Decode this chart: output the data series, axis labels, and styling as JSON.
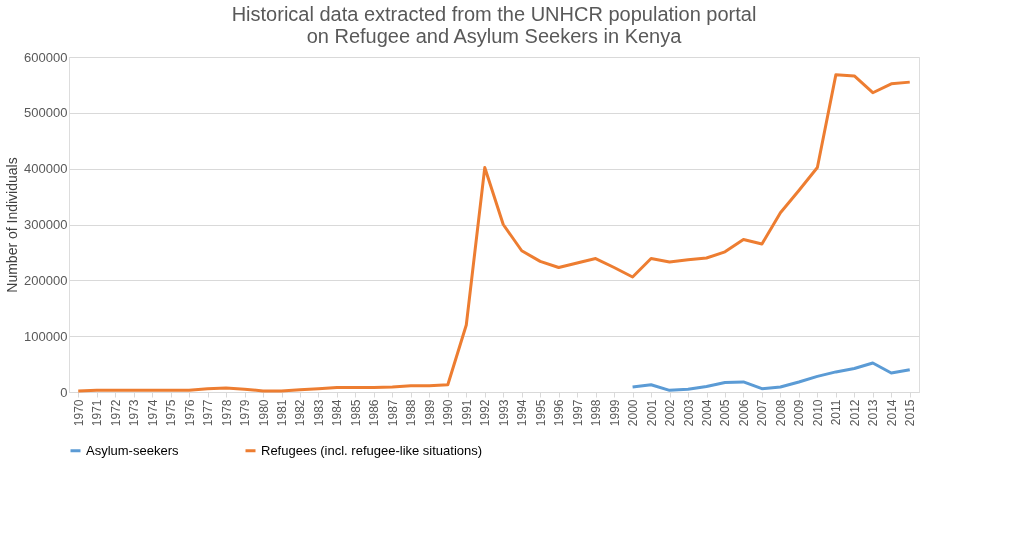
{
  "chart_data": {
    "type": "line",
    "title": "Historical data extracted from the UNHCR population portal\non Refugee and Asylum Seekers in Kenya",
    "ylabel": "Number of Individuals",
    "categories": [
      "1970",
      "1971",
      "1972",
      "1973",
      "1974",
      "1975",
      "1976",
      "1977",
      "1978",
      "1979",
      "1980",
      "1981",
      "1982",
      "1983",
      "1984",
      "1985",
      "1986",
      "1987",
      "1988",
      "1989",
      "1990",
      "1991",
      "1992",
      "1993",
      "1994",
      "1995",
      "1996",
      "1997",
      "1998",
      "1999",
      "2000",
      "2001",
      "2002",
      "2003",
      "2004",
      "2005",
      "2006",
      "2007",
      "2008",
      "2009",
      "2010",
      "2011",
      "2012",
      "2013",
      "2014",
      "2015"
    ],
    "series": [
      {
        "name": "Asylum-seekers",
        "color": "#5b9bd5",
        "values": [
          null,
          null,
          null,
          null,
          null,
          null,
          null,
          null,
          null,
          null,
          null,
          null,
          null,
          null,
          null,
          null,
          null,
          null,
          null,
          null,
          null,
          null,
          null,
          null,
          null,
          null,
          null,
          null,
          null,
          null,
          9000,
          13000,
          3000,
          5000,
          10000,
          17000,
          18000,
          6000,
          9000,
          18000,
          28000,
          36000,
          42000,
          52000,
          34000,
          40000
        ]
      },
      {
        "name": "Refugees (incl. refugee-like situations)",
        "color": "#ed7d31",
        "values": [
          2000,
          3000,
          3000,
          3000,
          3000,
          3000,
          3000,
          6000,
          7000,
          5000,
          2000,
          2000,
          4000,
          6000,
          8000,
          8000,
          8000,
          9000,
          11000,
          11000,
          13000,
          120000,
          402000,
          300000,
          253000,
          234000,
          223000,
          231000,
          239000,
          223000,
          206000,
          239000,
          233000,
          237000,
          240000,
          251000,
          273000,
          265000,
          321000,
          361000,
          402000,
          568000,
          566000,
          536000,
          552000,
          555000
        ]
      }
    ],
    "ylim": [
      0,
      600000
    ],
    "yticks": [
      0,
      100000,
      200000,
      300000,
      400000,
      500000,
      600000
    ],
    "grid": "y",
    "legend": "bottom",
    "marker": "none",
    "line_style": "solid"
  }
}
